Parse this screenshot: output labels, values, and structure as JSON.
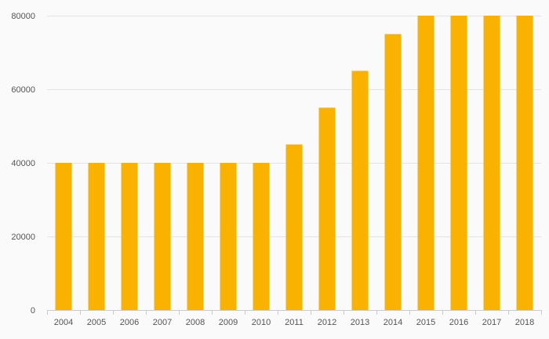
{
  "chart_data": {
    "type": "bar",
    "title": "",
    "xlabel": "",
    "ylabel": "",
    "categories": [
      "2004",
      "2005",
      "2006",
      "2007",
      "2008",
      "2009",
      "2010",
      "2011",
      "2012",
      "2013",
      "2014",
      "2015",
      "2016",
      "2017",
      "2018"
    ],
    "series": [
      {
        "values": [
          40000,
          40000,
          40000,
          40000,
          40000,
          40000,
          40000,
          45000,
          55000,
          65000,
          75000,
          80000,
          80000,
          80000,
          80000
        ]
      }
    ],
    "ylim": [
      0,
      80000
    ],
    "yticks": [
      0,
      20000,
      40000,
      60000,
      80000
    ],
    "grid": true,
    "legend": "none"
  },
  "colors": {
    "bar": "#f9b200",
    "background": "#fafafa"
  }
}
